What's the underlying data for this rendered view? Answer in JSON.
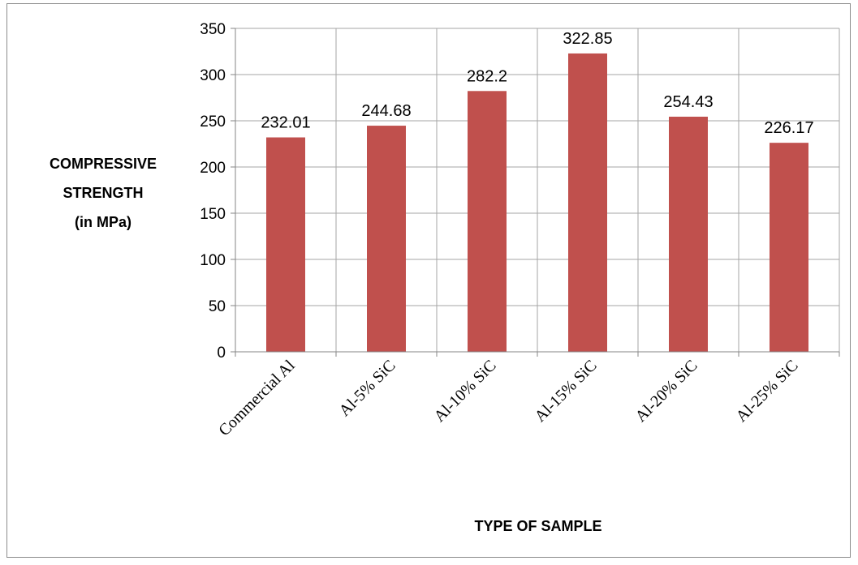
{
  "chart_data": {
    "type": "bar",
    "categories": [
      "Commercial Al",
      "Al-5% SiC",
      "Al-10% SiC",
      "Al-15% SiC",
      "Al-20% SiC",
      "Al-25% SiC"
    ],
    "values": [
      232.01,
      244.68,
      282.2,
      322.85,
      254.43,
      226.17
    ],
    "data_labels": [
      "232.01",
      "244.68",
      "282.2",
      "322.85",
      "254.43",
      "226.17"
    ],
    "title": "",
    "xlabel": "TYPE OF SAMPLE",
    "ylabel_lines": [
      "COMPRESSIVE",
      "STRENGTH",
      "(in MPa)"
    ],
    "ylim": [
      0,
      350
    ],
    "yticks": [
      0,
      50,
      100,
      150,
      200,
      250,
      300,
      350
    ],
    "grid": true,
    "legend": "none",
    "bar_color": "#c0504d",
    "grid_color": "#a6a6a6"
  }
}
